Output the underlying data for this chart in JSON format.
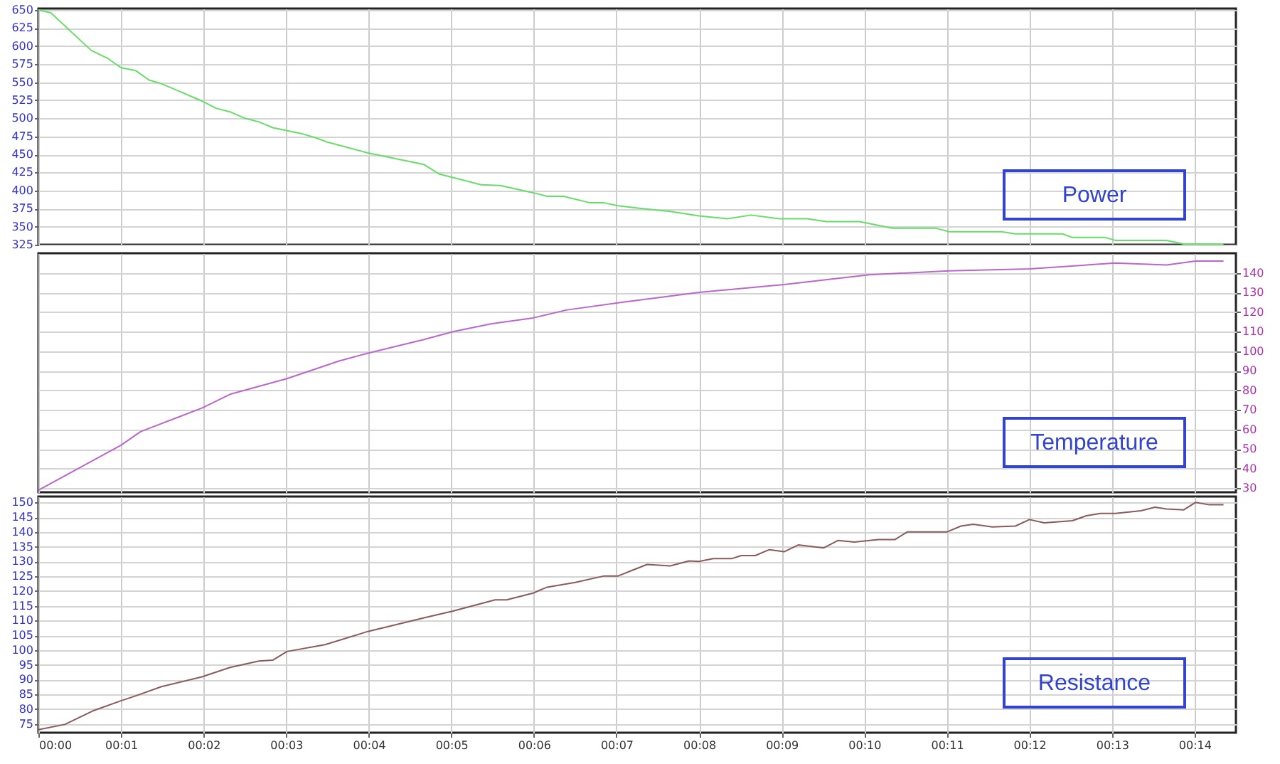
{
  "chart_data": [
    {
      "type": "line",
      "xlim": [
        0,
        14.5
      ],
      "xticks": [
        {
          "value": 0,
          "label": null
        },
        {
          "value": 1,
          "label": null
        },
        {
          "value": 2,
          "label": null
        },
        {
          "value": 3,
          "label": null
        },
        {
          "value": 4,
          "label": null
        },
        {
          "value": 5,
          "label": null
        },
        {
          "value": 6,
          "label": null
        },
        {
          "value": 7,
          "label": null
        },
        {
          "value": 8,
          "label": null
        },
        {
          "value": 9,
          "label": null
        },
        {
          "value": 10,
          "label": null
        },
        {
          "value": 11,
          "label": null
        },
        {
          "value": 12,
          "label": null
        },
        {
          "value": 13,
          "label": null
        },
        {
          "value": 14,
          "label": null
        }
      ],
      "ylim": [
        325,
        652
      ],
      "yticks": [
        325,
        350,
        375,
        400,
        425,
        450,
        475,
        500,
        525,
        550,
        575,
        600,
        625,
        650
      ],
      "grid": true,
      "tick_labels": "y",
      "line_style": "solid",
      "series": [
        {
          "name": "Power",
          "color": "#66dd66",
          "x": [
            0,
            0.15,
            0.64,
            0.84,
            1.0,
            1.18,
            1.34,
            1.49,
            1.98,
            2.15,
            2.32,
            2.5,
            2.67,
            2.84,
            3.18,
            3.36,
            3.5,
            3.99,
            4.67,
            4.85,
            5.36,
            5.59,
            5.99,
            6.16,
            6.36,
            6.68,
            6.85,
            7.02,
            7.31,
            7.65,
            8.0,
            8.34,
            8.63,
            8.97,
            9.31,
            9.54,
            9.94,
            10.34,
            10.86,
            11.03,
            11.66,
            11.83,
            12.4,
            12.52,
            12.92,
            13.04,
            13.66,
            13.87,
            14.35
          ],
          "values": [
            650,
            646,
            594,
            583,
            570,
            566,
            553,
            548,
            524,
            514,
            509,
            500,
            495,
            487,
            479,
            473,
            467,
            452,
            436,
            423,
            408,
            407,
            397,
            392,
            392,
            383,
            383,
            379,
            375,
            371,
            365,
            361,
            366,
            361,
            361,
            357,
            357,
            348,
            348,
            343,
            343,
            340,
            340,
            335,
            335,
            331,
            331,
            326,
            326
          ]
        }
      ]
    },
    {
      "type": "line",
      "xlim": [
        0,
        14.5
      ],
      "xticks": [
        {
          "value": 0,
          "label": null
        },
        {
          "value": 1,
          "label": null
        },
        {
          "value": 2,
          "label": null
        },
        {
          "value": 3,
          "label": null
        },
        {
          "value": 4,
          "label": null
        },
        {
          "value": 5,
          "label": null
        },
        {
          "value": 6,
          "label": null
        },
        {
          "value": 7,
          "label": null
        },
        {
          "value": 8,
          "label": null
        },
        {
          "value": 9,
          "label": null
        },
        {
          "value": 10,
          "label": null
        },
        {
          "value": 11,
          "label": null
        },
        {
          "value": 12,
          "label": null
        },
        {
          "value": 13,
          "label": null
        },
        {
          "value": 14,
          "label": null
        }
      ],
      "y2lim": [
        28,
        150
      ],
      "y2ticks": [
        30,
        40,
        50,
        60,
        70,
        80,
        90,
        100,
        110,
        120,
        130,
        140
      ],
      "grid": true,
      "tick_labels": "y",
      "line_style": "solid",
      "series": [
        {
          "name": "Temperature",
          "color": "#bb66cc",
          "axis": "y2",
          "x": [
            0,
            1.0,
            1.24,
            1.98,
            2.32,
            3.01,
            3.64,
            3.99,
            4.67,
            5.02,
            5.48,
            5.99,
            6.39,
            7.08,
            8.0,
            9.03,
            10.06,
            11.03,
            12.0,
            13.04,
            13.66,
            14.01,
            14.35
          ],
          "values": [
            29,
            52,
            59,
            71,
            78,
            86,
            95,
            99,
            106,
            110,
            114,
            117,
            121,
            125,
            130,
            134,
            139,
            141,
            142,
            145,
            144,
            146,
            146
          ]
        }
      ]
    },
    {
      "type": "line",
      "xlim": [
        0,
        14.5
      ],
      "xticks": [
        {
          "value": 0,
          "label": "00:00"
        },
        {
          "value": 1,
          "label": "00:01"
        },
        {
          "value": 2,
          "label": "00:02"
        },
        {
          "value": 3,
          "label": "00:03"
        },
        {
          "value": 4,
          "label": "00:04"
        },
        {
          "value": 5,
          "label": "00:05"
        },
        {
          "value": 6,
          "label": "00:06"
        },
        {
          "value": 7,
          "label": "00:07"
        },
        {
          "value": 8,
          "label": "00:08"
        },
        {
          "value": 9,
          "label": "00:09"
        },
        {
          "value": 10,
          "label": "00:10"
        },
        {
          "value": 11,
          "label": "00:11"
        },
        {
          "value": 12,
          "label": "00:12"
        },
        {
          "value": 13,
          "label": "00:13"
        },
        {
          "value": 14,
          "label": "00:14"
        }
      ],
      "ylim": [
        72,
        152
      ],
      "yticks": [
        75,
        80,
        85,
        90,
        95,
        100,
        105,
        110,
        115,
        120,
        125,
        130,
        135,
        140,
        145,
        150
      ],
      "grid": true,
      "line_style": "solid",
      "series": [
        {
          "name": "Resistance",
          "color": "#8b5a5a",
          "x": [
            0,
            0.32,
            0.66,
            1.0,
            1.18,
            1.49,
            1.98,
            2.32,
            2.67,
            2.84,
            3.01,
            3.47,
            3.99,
            4.67,
            5.02,
            5.53,
            5.67,
            5.99,
            6.16,
            6.5,
            6.85,
            7.02,
            7.19,
            7.37,
            7.65,
            7.88,
            8.0,
            8.17,
            8.4,
            8.51,
            8.68,
            8.85,
            9.03,
            9.2,
            9.51,
            9.68,
            9.88,
            10.17,
            10.37,
            10.52,
            11.0,
            11.17,
            11.32,
            11.55,
            11.83,
            12.0,
            12.18,
            12.52,
            12.69,
            12.86,
            13.04,
            13.35,
            13.52,
            13.66,
            13.87,
            14.01,
            14.18,
            14.35
          ],
          "values": [
            73,
            74.8,
            79.4,
            82.8,
            84.5,
            87.6,
            90.9,
            94.1,
            96.3,
            96.6,
            99.5,
            101.8,
            106.3,
            110.9,
            113.2,
            117,
            117,
            119.3,
            121.3,
            122.9,
            125.1,
            125.1,
            127,
            129,
            128.5,
            130.2,
            130,
            131,
            131,
            132,
            132,
            134,
            133.3,
            135.6,
            134.6,
            137.1,
            136.6,
            137.4,
            137.4,
            140,
            140,
            142,
            142.6,
            141.7,
            142,
            144.2,
            143.1,
            143.8,
            145.5,
            146.3,
            146.3,
            147.2,
            148.4,
            147.8,
            147.5,
            150,
            149.2,
            149.2
          ]
        }
      ]
    }
  ]
}
